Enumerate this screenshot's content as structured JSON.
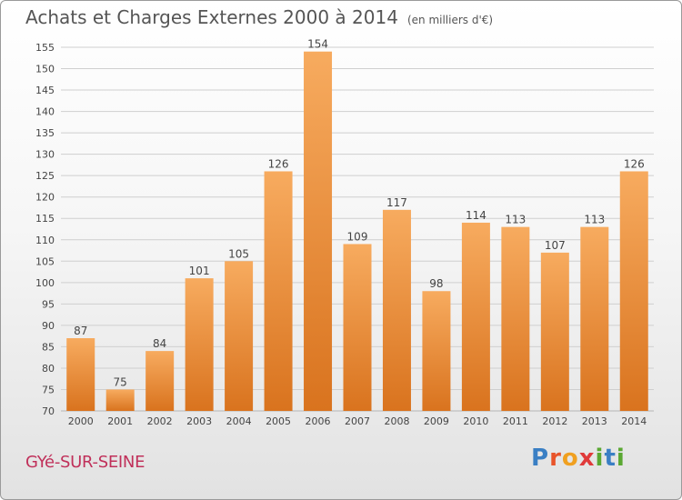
{
  "title": "Achats et Charges Externes 2000 à 2014",
  "subtitle": "(en milliers d'€)",
  "commune": "GYé-SUR-SEINE",
  "logo": {
    "letters": [
      "P",
      "r",
      "o",
      "x",
      "i",
      "t",
      "i"
    ],
    "colors": [
      "#3a7fc4",
      "#e8542a",
      "#f0a020",
      "#e03a3a",
      "#5aa832",
      "#3a7fc4",
      "#5aa832"
    ]
  },
  "colors": {
    "bar_light": "#f7ab5f",
    "bar_dark": "#d9731e",
    "commune": "#c0305a"
  },
  "chart_data": {
    "type": "bar",
    "categories": [
      "2000",
      "2001",
      "2002",
      "2003",
      "2004",
      "2005",
      "2006",
      "2007",
      "2008",
      "2009",
      "2010",
      "2011",
      "2012",
      "2013",
      "2014"
    ],
    "values": [
      87,
      75,
      84,
      101,
      105,
      126,
      154,
      109,
      117,
      98,
      114,
      113,
      107,
      113,
      126
    ],
    "ylim": [
      70,
      155
    ],
    "yticks": [
      70,
      75,
      80,
      85,
      90,
      95,
      100,
      105,
      110,
      115,
      120,
      125,
      130,
      135,
      140,
      145,
      150,
      155
    ],
    "grid": true,
    "data_labels": true
  }
}
